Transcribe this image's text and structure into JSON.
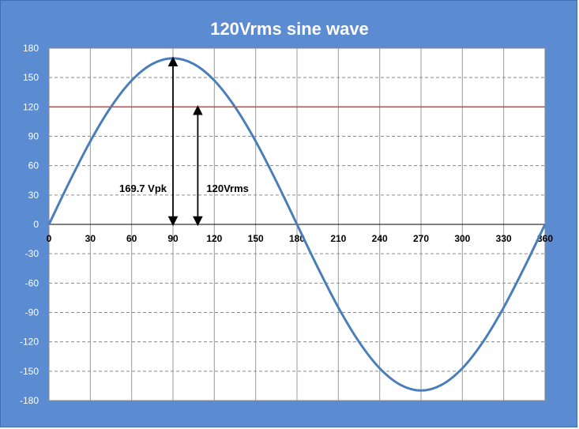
{
  "chart_data": {
    "type": "line",
    "title": "120Vrms sine wave",
    "xlim": [
      0,
      360
    ],
    "ylim": [
      -180,
      180
    ],
    "x_ticks": [
      0,
      30,
      60,
      90,
      120,
      150,
      180,
      210,
      240,
      270,
      300,
      330,
      360
    ],
    "y_ticks": [
      180,
      150,
      120,
      90,
      60,
      30,
      0,
      -30,
      -60,
      -90,
      -120,
      -150,
      -180
    ],
    "grid": true,
    "series": [
      {
        "color": "#4a7ebb",
        "x": [
          0,
          15,
          30,
          45,
          60,
          75,
          90,
          105,
          120,
          135,
          150,
          165,
          180,
          195,
          210,
          225,
          240,
          255,
          270,
          285,
          300,
          315,
          330,
          345,
          360
        ],
        "y": [
          0,
          43.9,
          84.9,
          120,
          147,
          163.9,
          169.7,
          163.9,
          147,
          120,
          84.9,
          43.9,
          0,
          -43.9,
          -84.9,
          -120,
          -147,
          -163.9,
          -169.7,
          -163.9,
          -147,
          -120,
          -84.9,
          -43.9,
          0
        ]
      },
      {
        "color": "#c0504d",
        "x": [
          0,
          360
        ],
        "y": [
          120,
          120
        ]
      }
    ],
    "annotations": [
      {
        "text": "169.7 Vpk",
        "x": 90,
        "y_from": 0,
        "y_to": 169.7
      },
      {
        "text": "120Vrms",
        "x": 108,
        "y_from": 0,
        "y_to": 120
      }
    ]
  }
}
